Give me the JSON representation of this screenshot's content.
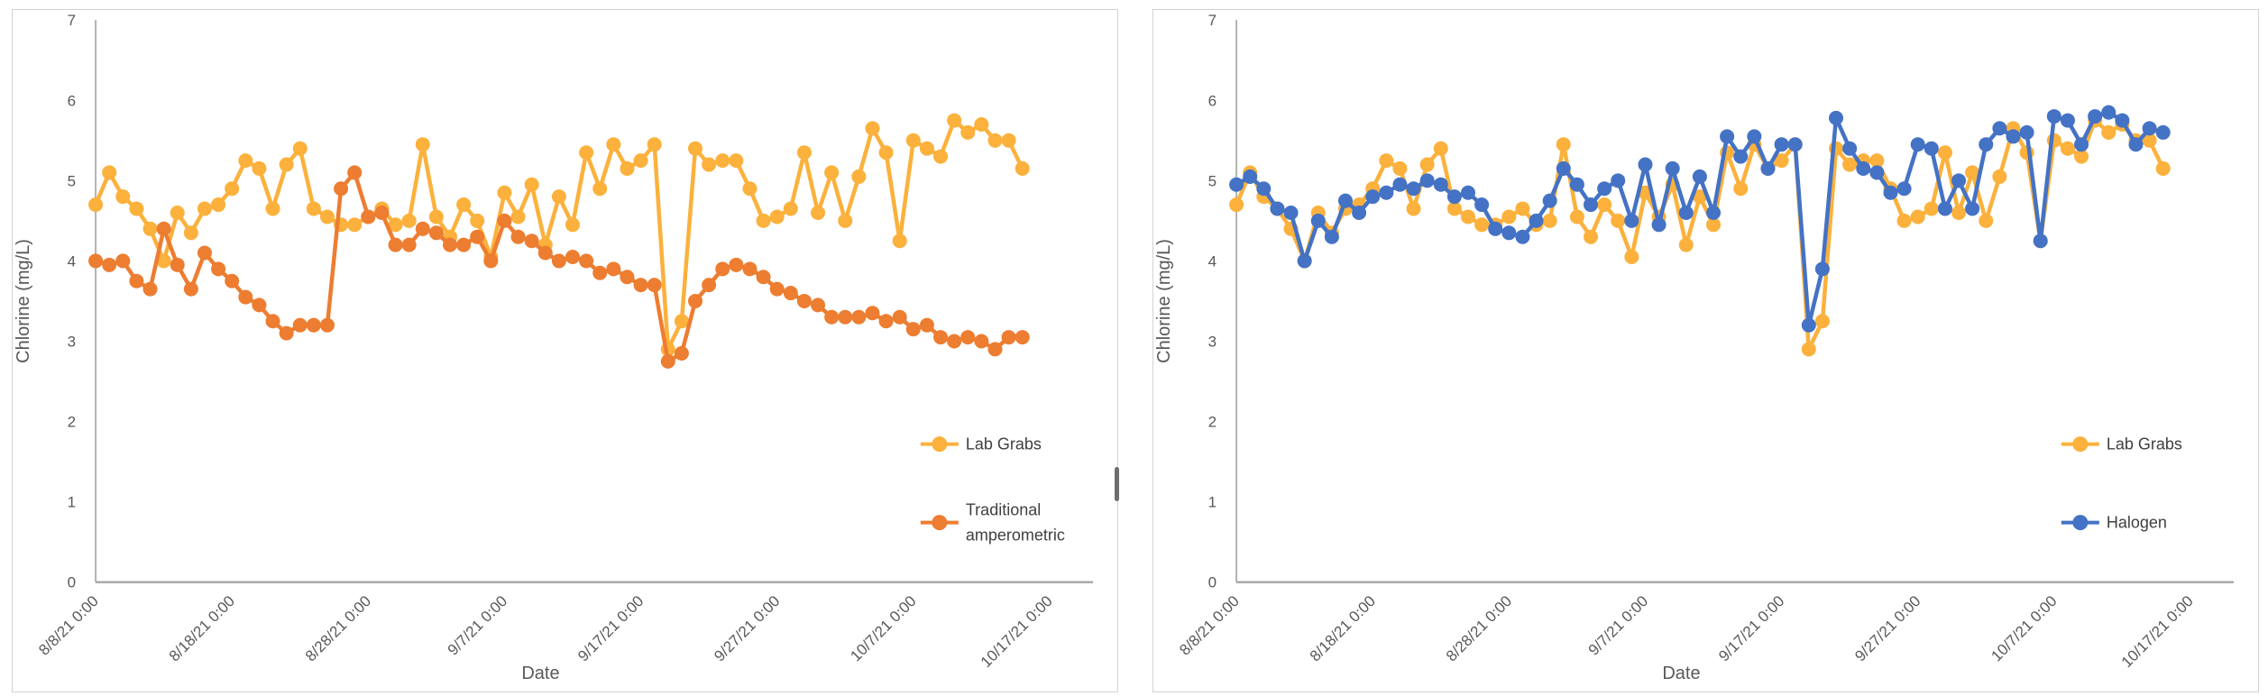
{
  "page": {
    "background": "#ffffff",
    "panel_border_color": "#d2d2d2"
  },
  "chart_data": [
    {
      "type": "line",
      "panel": "left",
      "title": "",
      "xlabel": "Date",
      "ylabel": "Chlorine (mg/L)",
      "ylim": [
        0,
        7
      ],
      "y_ticks": [
        0,
        1,
        2,
        3,
        4,
        5,
        6,
        7
      ],
      "x_tick_labels": [
        "8/8/21 0:00",
        "8/18/21 0:00",
        "8/28/21 0:00",
        "9/7/21 0:00",
        "9/17/21 0:00",
        "9/27/21 0:00",
        "10/7/21 0:00",
        "10/17/21 0:00"
      ],
      "x_tick_day_offsets": [
        0,
        10,
        20,
        30,
        40,
        50,
        60,
        70
      ],
      "x_sampling": "one point per day starting 8/8/21 0:00",
      "grid": false,
      "legend_position": "inside-right",
      "series": [
        {
          "name": "Lab Grabs",
          "legend_lines": [
            "Lab Grabs"
          ],
          "color": "#FBB13C",
          "marker": "circle",
          "values": [
            4.7,
            5.1,
            4.8,
            4.65,
            4.4,
            4.0,
            4.6,
            4.35,
            4.65,
            4.7,
            4.9,
            5.25,
            5.15,
            4.65,
            5.2,
            5.4,
            4.65,
            4.55,
            4.45,
            4.45,
            4.55,
            4.65,
            4.45,
            4.5,
            5.45,
            4.55,
            4.3,
            4.7,
            4.5,
            4.05,
            4.85,
            4.55,
            4.95,
            4.2,
            4.8,
            4.45,
            5.35,
            4.9,
            5.45,
            5.15,
            5.25,
            5.45,
            2.9,
            3.25,
            5.4,
            5.2,
            5.25,
            5.25,
            4.9,
            4.5,
            4.55,
            4.65,
            5.35,
            4.6,
            5.1,
            4.5,
            5.05,
            5.65,
            5.35,
            4.25,
            5.5,
            5.4,
            5.3,
            5.75,
            5.6,
            5.7,
            5.5,
            5.5,
            5.15
          ]
        },
        {
          "name": "Traditional amperometric",
          "legend_lines": [
            "Traditional",
            "amperometric"
          ],
          "color": "#ED7D31",
          "marker": "circle",
          "values": [
            4.0,
            3.95,
            4.0,
            3.75,
            3.65,
            4.4,
            3.95,
            3.65,
            4.1,
            3.9,
            3.75,
            3.55,
            3.45,
            3.25,
            3.1,
            3.2,
            3.2,
            3.2,
            4.9,
            5.1,
            4.55,
            4.6,
            4.2,
            4.2,
            4.4,
            4.35,
            4.2,
            4.2,
            4.3,
            4.0,
            4.5,
            4.3,
            4.25,
            4.1,
            4.0,
            4.05,
            4.0,
            3.85,
            3.9,
            3.8,
            3.7,
            3.7,
            2.75,
            2.85,
            3.5,
            3.7,
            3.9,
            3.95,
            3.9,
            3.8,
            3.65,
            3.6,
            3.5,
            3.45,
            3.3,
            3.3,
            3.3,
            3.35,
            3.25,
            3.3,
            3.15,
            3.2,
            3.05,
            3.0,
            3.05,
            3.0,
            2.9,
            3.05,
            3.05
          ]
        }
      ]
    },
    {
      "type": "line",
      "panel": "right",
      "title": "",
      "xlabel": "Date",
      "ylabel": "Chlorine (mg/L)",
      "ylim": [
        0,
        7
      ],
      "y_ticks": [
        0,
        1,
        2,
        3,
        4,
        5,
        6,
        7
      ],
      "x_tick_labels": [
        "8/8/21 0:00",
        "8/18/21 0:00",
        "8/28/21 0:00",
        "9/7/21 0:00",
        "9/17/21 0:00",
        "9/27/21 0:00",
        "10/7/21 0:00",
        "10/17/21 0:00"
      ],
      "x_tick_day_offsets": [
        0,
        10,
        20,
        30,
        40,
        50,
        60,
        70
      ],
      "x_sampling": "one point per day starting 8/8/21 0:00",
      "grid": false,
      "legend_position": "inside-right",
      "series": [
        {
          "name": "Lab Grabs",
          "legend_lines": [
            "Lab Grabs"
          ],
          "color": "#FBB13C",
          "marker": "circle",
          "values": [
            4.7,
            5.1,
            4.8,
            4.65,
            4.4,
            4.0,
            4.6,
            4.35,
            4.65,
            4.7,
            4.9,
            5.25,
            5.15,
            4.65,
            5.2,
            5.4,
            4.65,
            4.55,
            4.45,
            4.45,
            4.55,
            4.65,
            4.45,
            4.5,
            5.45,
            4.55,
            4.3,
            4.7,
            4.5,
            4.05,
            4.85,
            4.55,
            4.95,
            4.2,
            4.8,
            4.45,
            5.35,
            4.9,
            5.45,
            5.15,
            5.25,
            5.45,
            2.9,
            3.25,
            5.4,
            5.2,
            5.25,
            5.25,
            4.9,
            4.5,
            4.55,
            4.65,
            5.35,
            4.6,
            5.1,
            4.5,
            5.05,
            5.65,
            5.35,
            4.25,
            5.5,
            5.4,
            5.3,
            5.75,
            5.6,
            5.7,
            5.5,
            5.5,
            5.15
          ]
        },
        {
          "name": "Halogen",
          "legend_lines": [
            "Halogen"
          ],
          "color": "#4472C4",
          "marker": "circle",
          "values": [
            4.95,
            5.05,
            4.9,
            4.65,
            4.6,
            4.0,
            4.5,
            4.3,
            4.75,
            4.6,
            4.8,
            4.85,
            4.95,
            4.9,
            5.0,
            4.95,
            4.8,
            4.85,
            4.7,
            4.4,
            4.35,
            4.3,
            4.5,
            4.75,
            5.15,
            4.95,
            4.7,
            4.9,
            5.0,
            4.5,
            5.2,
            4.45,
            5.15,
            4.6,
            5.05,
            4.6,
            5.55,
            5.3,
            5.55,
            5.15,
            5.45,
            5.45,
            3.2,
            3.9,
            5.78,
            5.4,
            5.15,
            5.1,
            4.85,
            4.9,
            5.45,
            5.4,
            4.65,
            5.0,
            4.65,
            5.45,
            5.65,
            5.55,
            5.6,
            4.25,
            5.8,
            5.75,
            5.45,
            5.8,
            5.85,
            5.75,
            5.45,
            5.65,
            5.6
          ]
        }
      ]
    }
  ]
}
